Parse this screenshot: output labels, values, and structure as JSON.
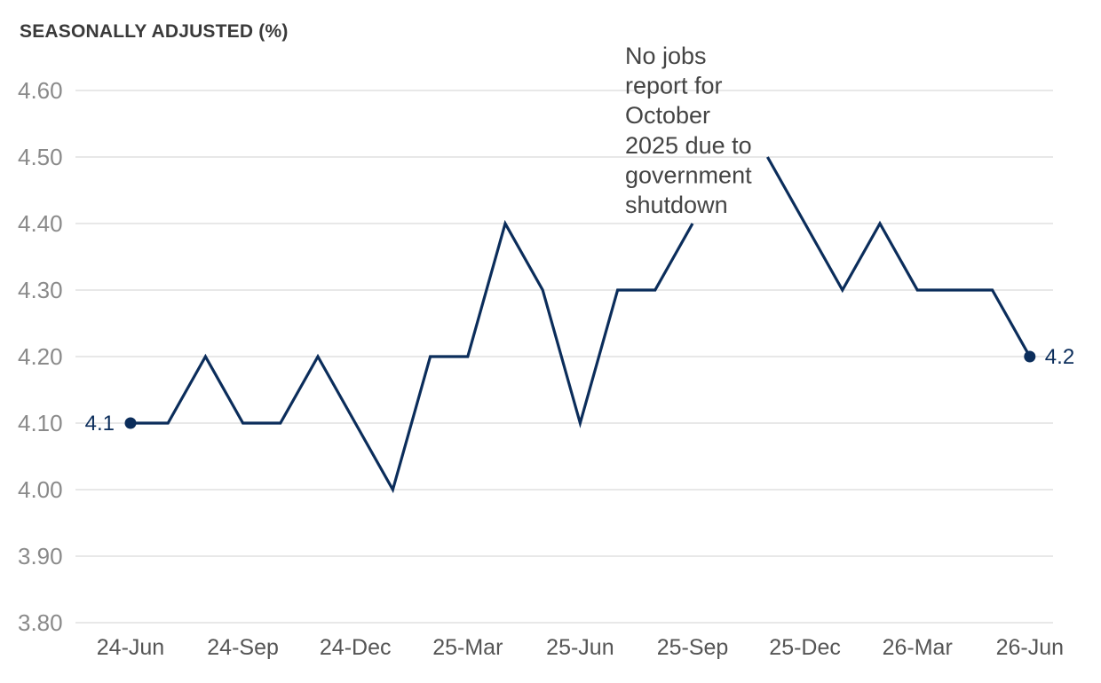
{
  "chart_data": {
    "type": "line",
    "ylabel": "SEASONALLY ADJUSTED (%)",
    "ylim": [
      3.8,
      4.6
    ],
    "yticks": [
      "3.80",
      "3.90",
      "4.00",
      "4.10",
      "4.20",
      "4.30",
      "4.40",
      "4.50",
      "4.60"
    ],
    "xticks": [
      "24-Jun",
      "24-Sep",
      "24-Dec",
      "25-Mar",
      "25-Jun",
      "25-Sep",
      "25-Dec",
      "26-Mar",
      "26-Jun"
    ],
    "grid": true,
    "color": "#0b2d5b",
    "series": [
      {
        "x": [
          "2024-06",
          "2024-07",
          "2024-08",
          "2024-09",
          "2024-10",
          "2024-11",
          "2024-12",
          "2025-01",
          "2025-02",
          "2025-03",
          "2025-04",
          "2025-05",
          "2025-06",
          "2025-07",
          "2025-08",
          "2025-09",
          "2025-10",
          "2025-11",
          "2025-12",
          "2026-01",
          "2026-02",
          "2026-03",
          "2026-04",
          "2026-05",
          "2026-06"
        ],
        "values": [
          4.1,
          4.1,
          4.2,
          4.1,
          4.1,
          4.2,
          4.1,
          4.0,
          4.2,
          4.2,
          4.4,
          4.3,
          4.1,
          4.3,
          4.3,
          4.4,
          null,
          4.5,
          4.4,
          4.3,
          4.4,
          4.3,
          4.3,
          4.3,
          4.2
        ]
      }
    ],
    "data_labels": [
      {
        "x": "2024-06",
        "text": "4.1"
      },
      {
        "x": "2026-06",
        "text": "4.2"
      }
    ],
    "annotation": "No jobs report for October 2025 due to government shutdown",
    "annotation_lines": [
      "No jobs",
      "report for",
      "October",
      "2025 due to",
      "government",
      "shutdown"
    ]
  }
}
